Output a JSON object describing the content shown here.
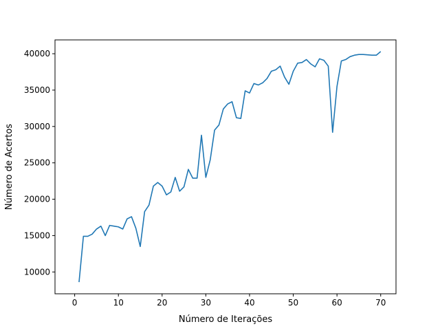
{
  "chart_data": {
    "type": "line",
    "title": "",
    "xlabel": "Número de Iterações",
    "ylabel": "Número de Acertos",
    "xlim": [
      -4.5,
      73.5
    ],
    "ylim": [
      7000,
      41900
    ],
    "x_ticks": [
      0,
      10,
      20,
      30,
      40,
      50,
      60,
      70
    ],
    "y_ticks": [
      10000,
      15000,
      20000,
      25000,
      30000,
      35000,
      40000
    ],
    "grid": false,
    "legend": "none",
    "series": [
      {
        "color": "#1f77b4",
        "x": [
          1,
          2,
          3,
          4,
          5,
          6,
          7,
          8,
          9,
          10,
          11,
          12,
          13,
          14,
          15,
          16,
          17,
          18,
          19,
          20,
          21,
          22,
          23,
          24,
          25,
          26,
          27,
          28,
          29,
          30,
          31,
          32,
          33,
          34,
          35,
          36,
          37,
          38,
          39,
          40,
          41,
          42,
          43,
          44,
          45,
          46,
          47,
          48,
          49,
          50,
          51,
          52,
          53,
          54,
          55,
          56,
          57,
          58,
          59,
          60,
          61,
          62,
          63,
          64,
          65,
          66,
          67,
          68,
          69,
          70
        ],
        "y": [
          8600,
          14900,
          14900,
          15200,
          15900,
          16300,
          15000,
          16400,
          16300,
          16200,
          15900,
          17300,
          17600,
          16000,
          13500,
          18300,
          19200,
          21800,
          22300,
          21800,
          20600,
          21000,
          23000,
          21100,
          21700,
          24100,
          22900,
          22900,
          28800,
          23000,
          25400,
          29500,
          30200,
          32400,
          33100,
          33400,
          31200,
          31100,
          34900,
          34600,
          35900,
          35700,
          36000,
          36600,
          37600,
          37800,
          38300,
          36800,
          35800,
          37600,
          38700,
          38800,
          39200,
          38600,
          38200,
          39300,
          39100,
          38300,
          29200,
          35500,
          39000,
          39200,
          39600,
          39800,
          39900,
          39900,
          39850,
          39800,
          39800,
          40300
        ]
      }
    ]
  }
}
